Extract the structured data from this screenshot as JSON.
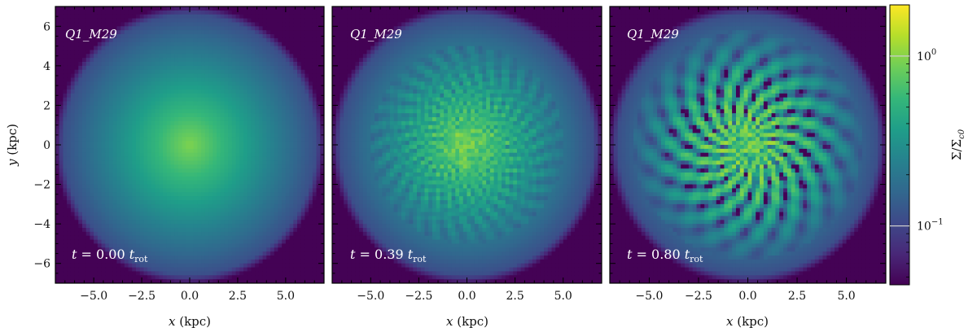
{
  "chart_data": {
    "type": "heatmap",
    "x": [
      -5.0,
      -2.5,
      0.0,
      2.5,
      5.0
    ],
    "y": [
      -6,
      -4,
      -2,
      0,
      2,
      4,
      6
    ],
    "xlim": [
      -7,
      7
    ],
    "ylim": [
      -7,
      7
    ],
    "xlabel_var": "x",
    "xlabel_unit": "(kpc)",
    "ylabel_var": "y",
    "ylabel_unit": "(kpc)",
    "xticklabels": [
      "−5.0",
      "−2.5",
      "0.0",
      "2.5",
      "5.0"
    ],
    "yticklabels": [
      "−6",
      "−4",
      "−2",
      "0",
      "2",
      "4",
      "6"
    ],
    "panels": [
      {
        "label_a": "Q1",
        "label_b": "M29",
        "time_prefix": "t = ",
        "time_value": "0.00",
        "time_unit": "t",
        "time_sub": "rot",
        "t_rot": 0.0,
        "structure": "smooth"
      },
      {
        "label_a": "Q1",
        "label_b": "M29",
        "time_prefix": "t = ",
        "time_value": "0.39",
        "time_unit": "t",
        "time_sub": "rot",
        "t_rot": 0.39,
        "structure": "fine"
      },
      {
        "label_a": "Q1",
        "label_b": "M29",
        "time_prefix": "t = ",
        "time_value": "0.80",
        "time_unit": "t",
        "time_sub": "rot",
        "t_rot": 0.8,
        "structure": "spiral"
      }
    ],
    "colorbar": {
      "scale": "log",
      "range": [
        0.045,
        2.0
      ],
      "label": "Σ/Σc0",
      "label_main": "Σ/Σ",
      "label_sub": "c0",
      "ticks": [
        {
          "value": 1.0,
          "base": "10",
          "exp": "0"
        },
        {
          "value": 0.1,
          "base": "10",
          "exp": "−1"
        }
      ],
      "colormap": "viridis",
      "colors": [
        "#440154",
        "#482878",
        "#3e4989",
        "#31688e",
        "#26828e",
        "#1f9e89",
        "#35b779",
        "#6ece58",
        "#b5de2b",
        "#fde725"
      ]
    }
  }
}
